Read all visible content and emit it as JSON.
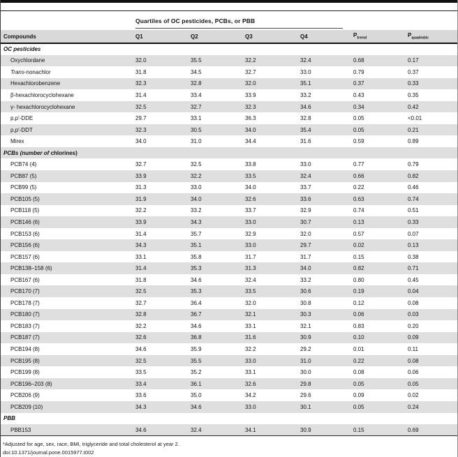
{
  "table": {
    "span_header": "Quartiles of OC pesticides, PCBs, or PBB",
    "columns": [
      "Compounds",
      "Q1",
      "Q2",
      "Q3",
      "Q4"
    ],
    "p_trend": {
      "base": "P",
      "sub": "trend"
    },
    "p_quadratic": {
      "base": "P",
      "sub": "quadratic"
    },
    "sections": [
      {
        "label_parts": [
          {
            "text": "OC pesticides",
            "italic": true
          }
        ],
        "rows": [
          {
            "name_parts": [
              {
                "text": "Oxychlordane"
              }
            ],
            "values": [
              "32.0",
              "35.5",
              "32.2",
              "32.4",
              "0.68",
              "0.17"
            ]
          },
          {
            "name_parts": [
              {
                "text": "Trans",
                "italic": true
              },
              {
                "text": "-nonachlor"
              }
            ],
            "values": [
              "31.8",
              "34.5",
              "32.7",
              "33.0",
              "0.79",
              "0.37"
            ]
          },
          {
            "name_parts": [
              {
                "text": "Hexachlorobenzene"
              }
            ],
            "values": [
              "32.3",
              "32.8",
              "32.0",
              "35.1",
              "0.37",
              "0.33"
            ]
          },
          {
            "name_parts": [
              {
                "text": "β-hexachlorocyclohexane"
              }
            ],
            "values": [
              "31.4",
              "33.4",
              "33.9",
              "33.2",
              "0.43",
              "0.35"
            ]
          },
          {
            "name_parts": [
              {
                "text": "γ- hexachlorocyclohexane"
              }
            ],
            "values": [
              "32.5",
              "32.7",
              "32.3",
              "34.6",
              "0.34",
              "0.42"
            ]
          },
          {
            "name_parts": [
              {
                "text": "p,p′-DDE"
              }
            ],
            "values": [
              "29.7",
              "33.1",
              "36.3",
              "32.8",
              "0.05",
              "<0.01"
            ]
          },
          {
            "name_parts": [
              {
                "text": "p,p′-DDT"
              }
            ],
            "values": [
              "32.3",
              "30.5",
              "34.0",
              "35.4",
              "0.05",
              "0.21"
            ]
          },
          {
            "name_parts": [
              {
                "text": "Mirex"
              }
            ],
            "values": [
              "34.0",
              "31.0",
              "34.4",
              "31.6",
              "0.59",
              "0.89"
            ]
          }
        ]
      },
      {
        "label_parts": [
          {
            "text": "PCBs (number of ",
            "italic": true
          },
          {
            "text": "chlorines)"
          }
        ],
        "rows": [
          {
            "name_parts": [
              {
                "text": "PCB74 (4)"
              }
            ],
            "values": [
              "32.7",
              "32.5",
              "33.8",
              "33.0",
              "0.77",
              "0.79"
            ]
          },
          {
            "name_parts": [
              {
                "text": "PCB87 (5)"
              }
            ],
            "values": [
              "33.9",
              "32.2",
              "33.5",
              "32.4",
              "0.66",
              "0.82"
            ]
          },
          {
            "name_parts": [
              {
                "text": "PCB99 (5)"
              }
            ],
            "values": [
              "31.3",
              "33.0",
              "34.0",
              "33.7",
              "0.22",
              "0.46"
            ]
          },
          {
            "name_parts": [
              {
                "text": "PCB105 (5)"
              }
            ],
            "values": [
              "31.9",
              "34.0",
              "32.6",
              "33.6",
              "0.63",
              "0.74"
            ]
          },
          {
            "name_parts": [
              {
                "text": "PCB118 (5)"
              }
            ],
            "values": [
              "32.2",
              "33.2",
              "33.7",
              "32.9",
              "0.74",
              "0.51"
            ]
          },
          {
            "name_parts": [
              {
                "text": "PCB146 (6)"
              }
            ],
            "values": [
              "33.9",
              "34.3",
              "33.0",
              "30.7",
              "0.13",
              "0.33"
            ]
          },
          {
            "name_parts": [
              {
                "text": "PCB153 (6)"
              }
            ],
            "values": [
              "31.4",
              "35.7",
              "32.9",
              "32.0",
              "0.57",
              "0.07"
            ]
          },
          {
            "name_parts": [
              {
                "text": "PCB156 (6)"
              }
            ],
            "values": [
              "34.3",
              "35.1",
              "33.0",
              "29.7",
              "0.02",
              "0.13"
            ]
          },
          {
            "name_parts": [
              {
                "text": "PCB157 (6)"
              }
            ],
            "values": [
              "33.1",
              "35.8",
              "31.7",
              "31.7",
              "0.15",
              "0.38"
            ]
          },
          {
            "name_parts": [
              {
                "text": "PCB138–158 (6)"
              }
            ],
            "values": [
              "31.4",
              "35.3",
              "31.3",
              "34.0",
              "0.82",
              "0.71"
            ]
          },
          {
            "name_parts": [
              {
                "text": "PCB167 (6)"
              }
            ],
            "values": [
              "31.8",
              "34.6",
              "32.4",
              "33.2",
              "0.80",
              "0.45"
            ]
          },
          {
            "name_parts": [
              {
                "text": "PCB170 (7)"
              }
            ],
            "values": [
              "32.5",
              "35.3",
              "33.5",
              "30.6",
              "0.19",
              "0.04"
            ]
          },
          {
            "name_parts": [
              {
                "text": "PCB178 (7)"
              }
            ],
            "values": [
              "32.7",
              "36.4",
              "32.0",
              "30.8",
              "0.12",
              "0.08"
            ]
          },
          {
            "name_parts": [
              {
                "text": "PCB180 (7)"
              }
            ],
            "values": [
              "32.8",
              "36.7",
              "32.1",
              "30.3",
              "0.06",
              "0.03"
            ]
          },
          {
            "name_parts": [
              {
                "text": "PCB183 (7)"
              }
            ],
            "values": [
              "32.2",
              "34.6",
              "33.1",
              "32.1",
              "0.83",
              "0.20"
            ]
          },
          {
            "name_parts": [
              {
                "text": "PCB187 (7)"
              }
            ],
            "values": [
              "32.6",
              "36.8",
              "31.6",
              "30.9",
              "0.10",
              "0.09"
            ]
          },
          {
            "name_parts": [
              {
                "text": "PCB194 (8)"
              }
            ],
            "values": [
              "34.6",
              "35.9",
              "32.2",
              "29.2",
              "0.01",
              "0.11"
            ]
          },
          {
            "name_parts": [
              {
                "text": "PCB195 (8)"
              }
            ],
            "values": [
              "32.5",
              "35.5",
              "33.0",
              "31.0",
              "0.22",
              "0.08"
            ]
          },
          {
            "name_parts": [
              {
                "text": "PCB199 (8)"
              }
            ],
            "values": [
              "33.5",
              "35.2",
              "33.1",
              "30.0",
              "0.08",
              "0.06"
            ]
          },
          {
            "name_parts": [
              {
                "text": "PCB196–203 (8)"
              }
            ],
            "values": [
              "33.4",
              "36.1",
              "32.6",
              "29.8",
              "0.05",
              "0.05"
            ]
          },
          {
            "name_parts": [
              {
                "text": "PCB206 (9)"
              }
            ],
            "values": [
              "33.6",
              "35.0",
              "34.2",
              "29.6",
              "0.09",
              "0.02"
            ]
          },
          {
            "name_parts": [
              {
                "text": "PCB209 (10)"
              }
            ],
            "values": [
              "34.3",
              "34.6",
              "33.0",
              "30.1",
              "0.05",
              "0.24"
            ]
          }
        ]
      },
      {
        "label_parts": [
          {
            "text": "PBB",
            "italic": true
          }
        ],
        "rows": [
          {
            "name_parts": [
              {
                "text": "PBB153"
              }
            ],
            "values": [
              "34.6",
              "32.4",
              "34.1",
              "30.9",
              "0.15",
              "0.69"
            ]
          }
        ]
      }
    ]
  },
  "footnotes": {
    "adjusted": "*Adjusted for age, sex, race, BMI, triglyceride and total cholesterol at year 2.",
    "doi": "doi:10.1371/journal.pone.0015977.t002"
  },
  "colors": {
    "row_stripe": "#dfdfdf",
    "header_row_bg": "#d9d9d9",
    "rule_black": "#101010"
  }
}
